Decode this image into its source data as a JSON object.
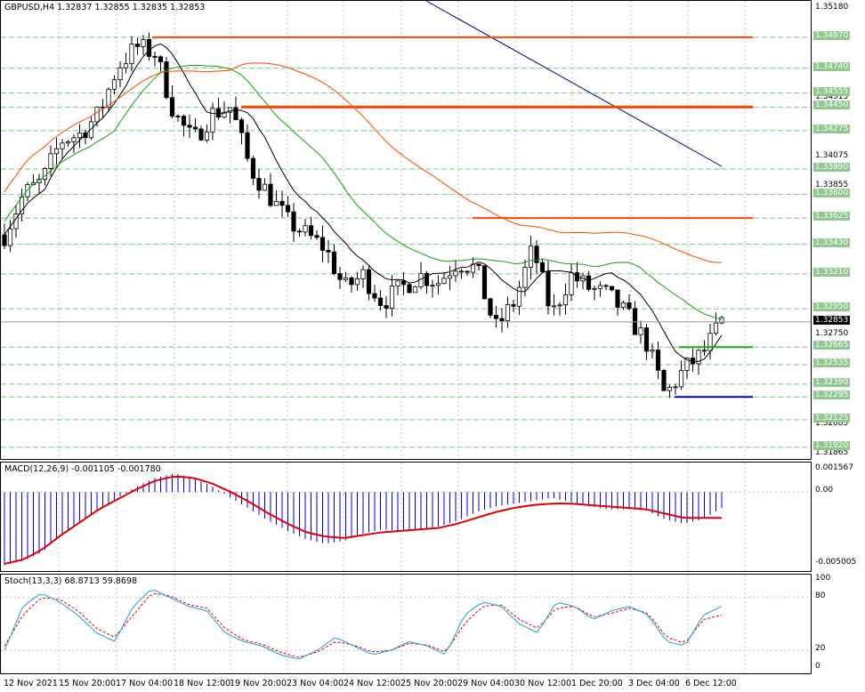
{
  "main": {
    "title": "GBPUSD,H4  1.32837 1.32855 1.32835 1.32853",
    "price_ticks": [
      "1.35180",
      "1.34515",
      "1.34075",
      "1.33855",
      "1.32750",
      "1.32085",
      "1.31865"
    ],
    "level_labels": [
      "1.34970",
      "1.34740",
      "1.34555",
      "1.34450",
      "1.34275",
      "1.33990",
      "1.33800",
      "1.33625",
      "1.33430",
      "1.33210",
      "1.32950",
      "1.32665",
      "1.32535",
      "1.32390",
      "1.32295",
      "1.32125",
      "1.31920"
    ],
    "current_price": "1.32853",
    "colors": {
      "candle": "#000000",
      "sma_black": "#000000",
      "sma_green": "#1a9e1a",
      "sma_orange": "#ff4500",
      "sma_navy": "#00008b",
      "res_line": "#ff4500",
      "support_green": "#1aa51a",
      "support_blue": "#0000cc",
      "grid": "#c0c0c0",
      "level_label_bg": "#90c890"
    }
  },
  "macd": {
    "title": "MACD(12,26,9) -0.001105 -0.001780",
    "ticks": [
      "0.001567",
      "0.00",
      "-0.005005"
    ],
    "colors": {
      "histogram": "#0000cd",
      "signal": "#e00000"
    }
  },
  "stoch": {
    "title": "Stoch(13,3,3) 68.8713 59.8698",
    "ticks": [
      "100",
      "80",
      "20",
      "0"
    ],
    "colors": {
      "main": "#1ea0d2",
      "signal": "#e00000"
    }
  },
  "time_axis": [
    "12 Nov 2021",
    "15 Nov 20:00",
    "17 Nov 04:00",
    "18 Nov 12:00",
    "19 Nov 20:00",
    "23 Nov 04:00",
    "24 Nov 12:00",
    "25 Nov 20:00",
    "29 Nov 04:00",
    "30 Nov 12:00",
    "1 Dec 20:00",
    "3 Dec 04:00",
    "6 Dec 12:00"
  ],
  "chart_data": {
    "type": "candlestick",
    "symbol": "GBPUSD",
    "timeframe": "H4",
    "ylim": [
      1.3182,
      1.3524
    ],
    "anchors": [
      1.335,
      1.338,
      1.339,
      1.342,
      1.3425,
      1.344,
      1.3475,
      1.349,
      1.3485,
      1.344,
      1.342,
      1.344,
      1.3445,
      1.34,
      1.338,
      1.336,
      1.335,
      1.334,
      1.331,
      1.332,
      1.33,
      1.331,
      1.332,
      1.3315,
      1.333,
      1.3325,
      1.328,
      1.33,
      1.334,
      1.329,
      1.332,
      1.331,
      1.3305,
      1.329,
      1.327,
      1.323,
      1.325,
      1.3262,
      1.3285
    ],
    "macd_anchors": [
      -0.0051,
      -0.0048,
      -0.0042,
      -0.003,
      -0.002,
      -0.0012,
      -0.0004,
      0.0004,
      0.001,
      0.0013,
      0.001,
      0.0004,
      -0.0004,
      -0.0012,
      -0.002,
      -0.0027,
      -0.0033,
      -0.0036,
      -0.0034,
      -0.0029,
      -0.0026,
      -0.0027,
      -0.0026,
      -0.0024,
      -0.002,
      -0.0014,
      -0.001,
      -0.0008,
      -0.0006,
      -0.0004,
      -0.0007,
      -0.001,
      -0.0012,
      -0.0012,
      -0.0013,
      -0.0019,
      -0.0022,
      -0.0019,
      -0.0011
    ],
    "signal_anchors": [
      -0.005,
      -0.0047,
      -0.004,
      -0.003,
      -0.0021,
      -0.0012,
      -0.0005,
      0.0002,
      0.0008,
      0.0011,
      0.001,
      0.0006,
      0.0,
      -0.0007,
      -0.0015,
      -0.0022,
      -0.0028,
      -0.0031,
      -0.0032,
      -0.003,
      -0.0028,
      -0.0027,
      -0.0026,
      -0.0025,
      -0.0022,
      -0.0018,
      -0.0014,
      -0.0011,
      -0.0009,
      -0.0008,
      -0.0008,
      -0.0009,
      -0.001,
      -0.0011,
      -0.0012,
      -0.0015,
      -0.0018,
      -0.0018,
      -0.0018
    ],
    "stoch_main": [
      20,
      70,
      85,
      75,
      60,
      40,
      30,
      70,
      90,
      80,
      70,
      65,
      40,
      30,
      25,
      15,
      10,
      20,
      35,
      25,
      15,
      20,
      30,
      25,
      15,
      60,
      75,
      70,
      50,
      40,
      75,
      70,
      55,
      65,
      70,
      60,
      30,
      25,
      60,
      70
    ],
    "stoch_signal": [
      25,
      60,
      80,
      78,
      65,
      45,
      35,
      60,
      85,
      82,
      72,
      68,
      45,
      32,
      27,
      18,
      12,
      18,
      30,
      26,
      18,
      20,
      28,
      26,
      18,
      50,
      70,
      72,
      55,
      45,
      68,
      70,
      58,
      62,
      68,
      62,
      35,
      28,
      55,
      60
    ],
    "levels": [
      1.3497,
      1.3474,
      1.34555,
      1.3445,
      1.34275,
      1.3399,
      1.338,
      1.33625,
      1.3343,
      1.3321,
      1.3295,
      1.32665,
      1.32535,
      1.3239,
      1.32295,
      1.32125,
      1.3192
    ]
  }
}
